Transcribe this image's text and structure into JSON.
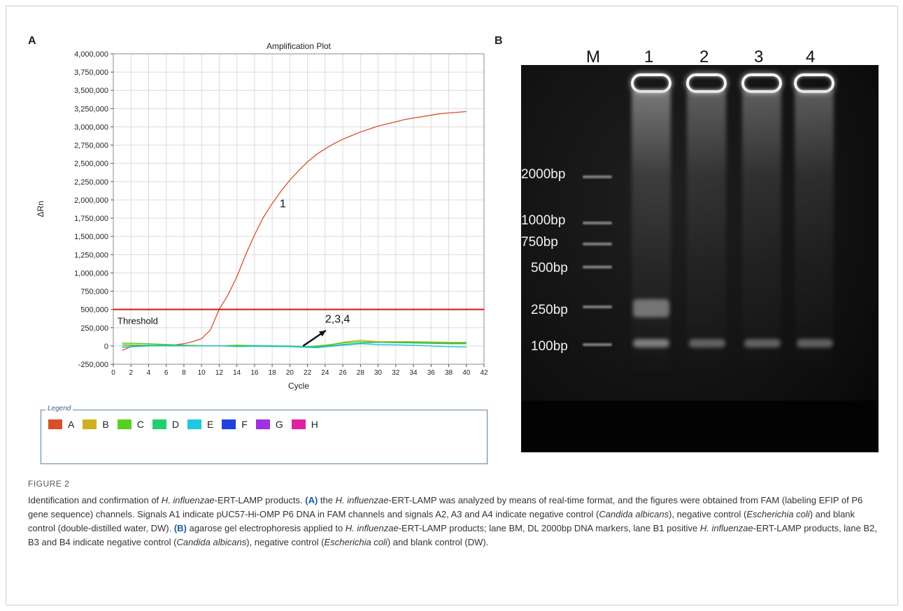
{
  "panel_a_label": "A",
  "panel_b_label": "B",
  "chart_data": {
    "type": "line",
    "title": "Amplification Plot",
    "xlabel": "Cycle",
    "ylabel": "ΔRn",
    "xlim": [
      0,
      42
    ],
    "ylim": [
      -250000,
      4000000
    ],
    "xticks": [
      0,
      2,
      4,
      6,
      8,
      10,
      12,
      14,
      16,
      18,
      20,
      22,
      24,
      26,
      28,
      30,
      32,
      34,
      36,
      38,
      40,
      42
    ],
    "yticks": [
      -250000,
      0,
      250000,
      500000,
      750000,
      1000000,
      1250000,
      1500000,
      1750000,
      2000000,
      2250000,
      2500000,
      2750000,
      3000000,
      3250000,
      3500000,
      3750000,
      4000000
    ],
    "ytick_labels": [
      "-250,000",
      "0",
      "250,000",
      "500,000",
      "750,000",
      "1,000,000",
      "1,250,000",
      "1,500,000",
      "1,750,000",
      "2,000,000",
      "2,250,000",
      "2,500,000",
      "2,750,000",
      "3,000,000",
      "3,250,000",
      "3,500,000",
      "3,750,000",
      "4,000,000"
    ],
    "grid": true,
    "threshold": {
      "label": "Threshold",
      "value": 500000,
      "color": "#e01010"
    },
    "annotations": [
      {
        "text": "1",
        "x": 19.2,
        "y": 1900000
      },
      {
        "text": "2,3,4",
        "x": 24,
        "y": 320000,
        "arrow_from": [
          21.5,
          0
        ],
        "arrow_to": [
          26.3,
          250000
        ]
      }
    ],
    "series": [
      {
        "color": "#d8502a",
        "x": [
          1,
          2,
          3,
          4,
          5,
          6,
          7,
          8,
          9,
          10,
          11,
          12,
          13,
          14,
          15,
          16,
          17,
          18,
          19,
          20,
          21,
          22,
          23,
          24,
          25,
          26,
          27,
          28,
          29,
          30,
          31,
          32,
          33,
          34,
          35,
          36,
          37,
          38,
          39,
          40
        ],
        "y": [
          -60000,
          -10000,
          5000,
          10000,
          8000,
          10000,
          15000,
          30000,
          60000,
          100000,
          220000,
          500000,
          700000,
          950000,
          1250000,
          1520000,
          1760000,
          1950000,
          2120000,
          2270000,
          2400000,
          2520000,
          2620000,
          2700000,
          2770000,
          2830000,
          2880000,
          2930000,
          2970000,
          3010000,
          3040000,
          3070000,
          3100000,
          3120000,
          3140000,
          3160000,
          3180000,
          3190000,
          3200000,
          3210000
        ]
      },
      {
        "color": "#c8b018",
        "x": [
          1,
          4,
          8,
          12,
          16,
          20,
          22,
          24,
          26,
          28,
          30,
          34,
          38,
          40
        ],
        "y": [
          20000,
          10000,
          5000,
          0,
          0,
          -5000,
          -10000,
          0,
          50000,
          80000,
          60000,
          60000,
          50000,
          50000
        ]
      },
      {
        "color": "#4cc828",
        "x": [
          1,
          4,
          8,
          12,
          14,
          16,
          20,
          22,
          24,
          26,
          28,
          30,
          34,
          38,
          40
        ],
        "y": [
          40000,
          30000,
          10000,
          0,
          10000,
          5000,
          -5000,
          -10000,
          10000,
          40000,
          60000,
          50000,
          50000,
          40000,
          40000
        ]
      },
      {
        "color": "#20c878",
        "x": [
          1,
          4,
          8,
          12,
          14,
          16,
          20,
          23,
          26,
          28,
          30,
          34,
          38,
          40
        ],
        "y": [
          0,
          10000,
          5000,
          0,
          -5000,
          5000,
          0,
          -15000,
          20000,
          40000,
          50000,
          40000,
          30000,
          30000
        ]
      },
      {
        "color": "#20c0d0",
        "x": [
          1,
          4,
          8,
          12,
          14,
          16,
          20,
          23,
          26,
          28,
          30,
          34,
          38,
          40
        ],
        "y": [
          -20000,
          0,
          0,
          5000,
          -10000,
          -5000,
          -10000,
          -25000,
          10000,
          30000,
          20000,
          10000,
          -10000,
          -15000
        ]
      }
    ]
  },
  "legend": {
    "title": "Legend",
    "items": [
      {
        "label": "A",
        "color": "#d8502a"
      },
      {
        "label": "B",
        "color": "#d0b020"
      },
      {
        "label": "C",
        "color": "#58d020"
      },
      {
        "label": "D",
        "color": "#20d070"
      },
      {
        "label": "E",
        "color": "#20c8e0"
      },
      {
        "label": "F",
        "color": "#2040e0"
      },
      {
        "label": "G",
        "color": "#a030e0"
      },
      {
        "label": "H",
        "color": "#e020a0"
      }
    ]
  },
  "gel": {
    "lane_labels": [
      "M",
      "1",
      "2",
      "3",
      "4"
    ],
    "marker_labels": [
      "2000bp",
      "1000bp",
      "750bp",
      "500bp",
      "250bp",
      "100bp"
    ]
  },
  "caption": {
    "heading": "FIGURE 2",
    "t1": "Identification and confirmation of ",
    "sp1": "H. influenzae",
    "t2": "-ERT-LAMP products. ",
    "a_label": "(A)",
    "t3": " the ",
    "sp2": "H. influenzae",
    "t4": "-ERT-LAMP was analyzed by means of real-time format, and the figures were obtained from FAM (labeling EFIP of P6 gene sequence) channels. Signals A1 indicate pUC57-Hi-OMP P6 DNA in FAM channels and signals A2, A3 and A4 indicate negative control (",
    "sp3": "Candida albicans",
    "t5": "), negative control (",
    "sp4": "Escherichia coli",
    "t6": ") and blank control (double-distilled water, DW). ",
    "b_label": "(B)",
    "t7": " agarose gel electrophoresis applied to ",
    "sp5": "H. influenzae",
    "t8": "-ERT-LAMP products; lane BM, DL 2000bp DNA markers, lane B1 positive ",
    "sp6": "H. influenzae",
    "t9": "-ERT-LAMP products, lane B2, B3 and B4 indicate negative control (",
    "sp7": "Candida albicans",
    "t10": "), negative control (",
    "sp8": "Escherichia coli",
    "t11": ") and blank control (DW)."
  }
}
